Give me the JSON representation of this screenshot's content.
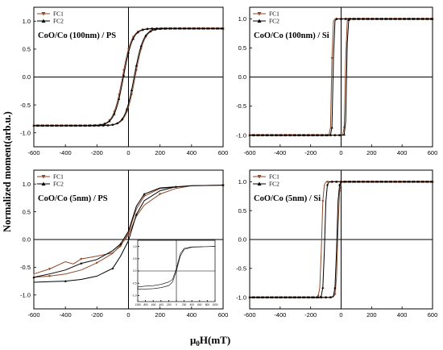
{
  "figure": {
    "ylabel": "Normalized moment(arb.u.)",
    "xlabel_mu": "μ",
    "xlabel_sub": "0",
    "xlabel_rest": "H(mT)"
  },
  "colors": {
    "fc1": "#8b4a2b",
    "fc2": "#000000",
    "axis": "#000000"
  },
  "chart_data": [
    {
      "type": "line",
      "title": "CoO/Co (100nm) / PS",
      "legend_position": "top-left",
      "xlim": [
        -600,
        600
      ],
      "ylim": [
        -1.25,
        1.25
      ],
      "xticks": [
        -600,
        -400,
        -200,
        0,
        200,
        400,
        600
      ],
      "yticks": [
        -1.0,
        -0.5,
        0.0,
        0.5,
        1.0
      ],
      "ytick_labels": [
        "-1.0",
        "-0.5",
        "0.0",
        "0.5",
        "1.0"
      ],
      "series": [
        {
          "name": "FC1",
          "shape": "tanh",
          "sat": 0.87,
          "hc_left": -38,
          "hc_right": 42,
          "width": 58
        },
        {
          "name": "FC2",
          "shape": "tanh",
          "sat": 0.87,
          "hc_left": -32,
          "hc_right": 36,
          "width": 58
        }
      ]
    },
    {
      "type": "line",
      "title": "CoO/Co (100nm) / Si",
      "legend_position": "top-left",
      "xlim": [
        -600,
        600
      ],
      "ylim": [
        -1.2,
        1.2
      ],
      "xticks": [
        -600,
        -400,
        -200,
        0,
        200,
        400,
        600
      ],
      "yticks": [
        -1.0,
        -0.5,
        0.0,
        0.5,
        1.0
      ],
      "ytick_labels": [
        "-1.0",
        "-0.5",
        "0.0",
        "0.5",
        "1.0"
      ],
      "series": [
        {
          "name": "FC1",
          "shape": "square",
          "sat": 1.0,
          "hc_left": -62,
          "hc_right": 28,
          "width": 6
        },
        {
          "name": "FC2",
          "shape": "square",
          "sat": 1.0,
          "hc_left": -52,
          "hc_right": 36,
          "width": 6
        }
      ]
    },
    {
      "type": "line",
      "title": "CoO/Co (5nm) / PS",
      "legend_position": "top-left",
      "xlim": [
        -600,
        600
      ],
      "ylim": [
        -1.25,
        1.25
      ],
      "xticks": [
        -600,
        -400,
        -200,
        0,
        200,
        400,
        600
      ],
      "yticks": [
        -1.0,
        -0.5,
        0.0,
        0.5,
        1.0
      ],
      "ytick_labels": [
        "-1.0",
        "-0.5",
        "0.0",
        "0.5",
        "1.0"
      ],
      "series": [
        {
          "name": "FC1",
          "desc_x": [
            600,
            400,
            200,
            100,
            50,
            0,
            -50,
            -100,
            -200,
            -300,
            -350,
            -400,
            -500,
            -600
          ],
          "desc_y": [
            0.98,
            0.97,
            0.92,
            0.78,
            0.55,
            0.12,
            -0.12,
            -0.24,
            -0.3,
            -0.35,
            -0.44,
            -0.4,
            -0.53,
            -0.62
          ],
          "asc_x": [
            -600,
            -500,
            -400,
            -300,
            -200,
            -100,
            -50,
            0,
            50,
            100,
            200,
            300,
            400,
            600
          ],
          "asc_y": [
            -0.68,
            -0.66,
            -0.62,
            -0.55,
            -0.42,
            -0.25,
            -0.1,
            0.08,
            0.42,
            0.62,
            0.82,
            0.92,
            0.97,
            0.98
          ]
        },
        {
          "name": "FC2",
          "desc_x": [
            600,
            400,
            200,
            100,
            50,
            0,
            -50,
            -100,
            -200,
            -300,
            -400,
            -500,
            -600
          ],
          "desc_y": [
            0.98,
            0.97,
            0.93,
            0.82,
            0.6,
            0.15,
            -0.08,
            -0.2,
            -0.36,
            -0.43,
            -0.55,
            -0.62,
            -0.68
          ],
          "asc_x": [
            -600,
            -500,
            -400,
            -300,
            -200,
            -100,
            -50,
            0,
            50,
            100,
            200,
            300,
            400,
            600
          ],
          "asc_y": [
            -0.77,
            -0.76,
            -0.75,
            -0.72,
            -0.66,
            -0.52,
            -0.3,
            -0.02,
            0.45,
            0.7,
            0.88,
            0.95,
            0.97,
            0.98
          ]
        }
      ]
    },
    {
      "type": "line",
      "title": "CoO/Co (5nm) / Si",
      "legend_position": "top-left",
      "xlim": [
        -600,
        600
      ],
      "ylim": [
        -1.2,
        1.2
      ],
      "xticks": [
        -600,
        -400,
        -200,
        0,
        200,
        400,
        600
      ],
      "yticks": [
        -1.0,
        -0.5,
        0.0,
        0.5,
        1.0
      ],
      "ytick_labels": [
        "-1.0",
        "-0.5",
        "0.0",
        "0.5",
        "1.0"
      ],
      "series": [
        {
          "name": "FC1",
          "shape": "square",
          "sat": 1.0,
          "hc_left": -128,
          "hc_right": -22,
          "width": 10
        },
        {
          "name": "FC2",
          "shape": "square",
          "sat": 1.0,
          "hc_left": -108,
          "hc_right": -28,
          "width": 10
        }
      ]
    },
    {
      "type": "line",
      "title": "",
      "role": "inset",
      "xlim": [
        -1000,
        1000
      ],
      "ylim": [
        -1.25,
        1.25
      ],
      "xticks": [
        -1000,
        -800,
        -600,
        -400,
        -200,
        0,
        200,
        400,
        600,
        800,
        1000
      ],
      "yticks": [
        -1.0,
        -0.5,
        0.0,
        0.5,
        1.0
      ],
      "ytick_labels": [
        "-1.0",
        "-0.5",
        "0.0",
        "0.5",
        "1.0"
      ],
      "series": [
        {
          "desc_x": [
            1000,
            400,
            200,
            100,
            0,
            -100,
            -200,
            -400,
            -600,
            -800,
            -1000
          ],
          "desc_y": [
            1.0,
            0.98,
            0.92,
            0.7,
            0.1,
            -0.35,
            -0.45,
            -0.55,
            -0.6,
            -0.62,
            -0.65
          ],
          "asc_x": [
            -1000,
            -600,
            -400,
            -200,
            -100,
            0,
            100,
            200,
            400,
            1000
          ],
          "asc_y": [
            -0.75,
            -0.72,
            -0.68,
            -0.6,
            -0.45,
            0.0,
            0.6,
            0.88,
            0.97,
            1.0
          ]
        }
      ]
    }
  ]
}
